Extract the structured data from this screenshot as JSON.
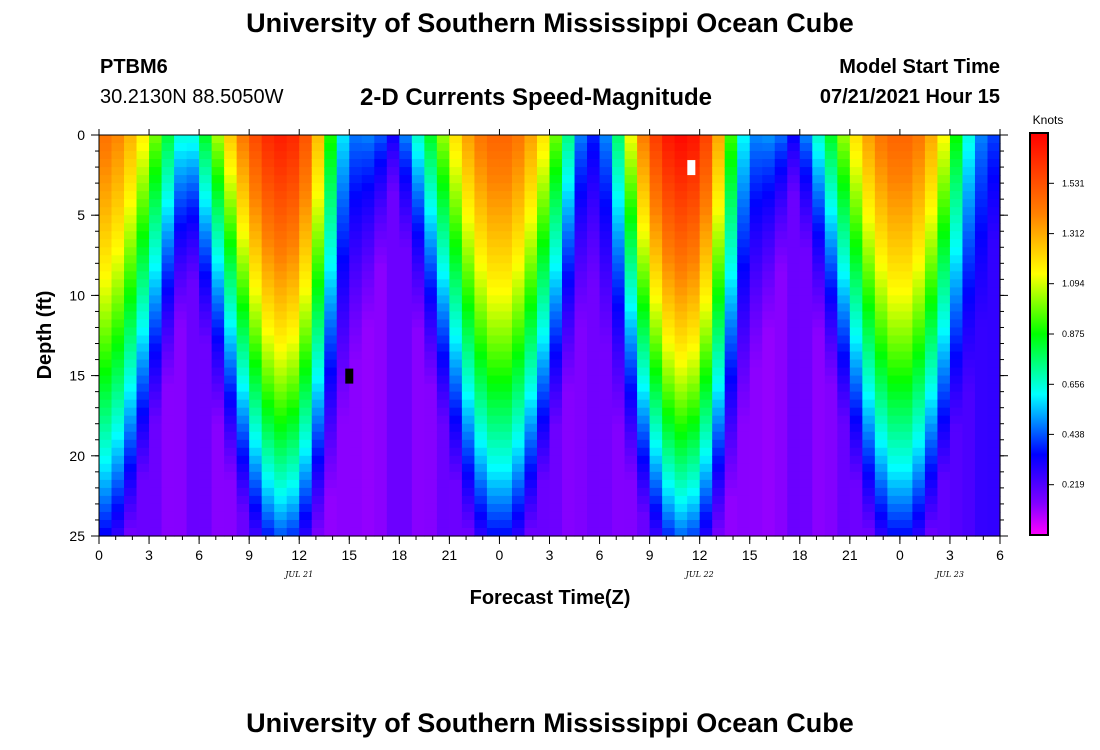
{
  "header": {
    "title": "University of Southern Mississippi Ocean Cube",
    "station": "PTBM6",
    "coords": "30.2130N  88.5050W",
    "subtitle": "2-D Currents Speed-Magnitude",
    "model_start_label": "Model Start Time",
    "model_start_value": "07/21/2021 Hour 15"
  },
  "footer": {
    "title": "University of Southern Mississippi Ocean Cube"
  },
  "chart_data": {
    "type": "heatmap",
    "title": "2-D Currents Speed-Magnitude",
    "xlabel": "Forecast Time(Z)",
    "ylabel": "Depth (ft)",
    "x_range_hours": [
      0,
      54
    ],
    "x_ticks": [
      "0",
      "3",
      "6",
      "9",
      "12",
      "15",
      "18",
      "21",
      "0",
      "3",
      "6",
      "9",
      "12",
      "15",
      "18",
      "21",
      "0",
      "3",
      "6"
    ],
    "date_labels": [
      {
        "text": "JUL 21",
        "hour": 12
      },
      {
        "text": "JUL 22",
        "hour": 36
      },
      {
        "text": "JUL 23",
        "hour": 51
      }
    ],
    "y_range_ft": [
      0,
      25
    ],
    "y_ticks": [
      "0",
      "5",
      "10",
      "15",
      "20",
      "25"
    ],
    "colorbar": {
      "units": "Knots",
      "min": 0.0,
      "max": 1.75,
      "labels": [
        "1.531",
        "1.312",
        "1.094",
        "0.875",
        "0.656",
        "0.438",
        "0.219"
      ]
    },
    "surface_peaks_knots": [
      {
        "hour": 0,
        "speed": 1.35
      },
      {
        "hour": 11,
        "speed": 1.65
      },
      {
        "hour": 24,
        "speed": 1.4
      },
      {
        "hour": 35,
        "speed": 1.72
      },
      {
        "hour": 48,
        "speed": 1.4
      }
    ],
    "minima_knots": [
      {
        "hour": 15,
        "speed": 0.1
      },
      {
        "hour": 30,
        "speed": 0.15
      },
      {
        "hour": 39,
        "speed": 0.1
      },
      {
        "hour": 53,
        "speed": 0.3
      }
    ],
    "markers": [
      {
        "color": "#ffffff",
        "hour": 35.5,
        "depth_ft": 2
      },
      {
        "color": "#000000",
        "hour": 15,
        "depth_ft": 15
      }
    ]
  }
}
